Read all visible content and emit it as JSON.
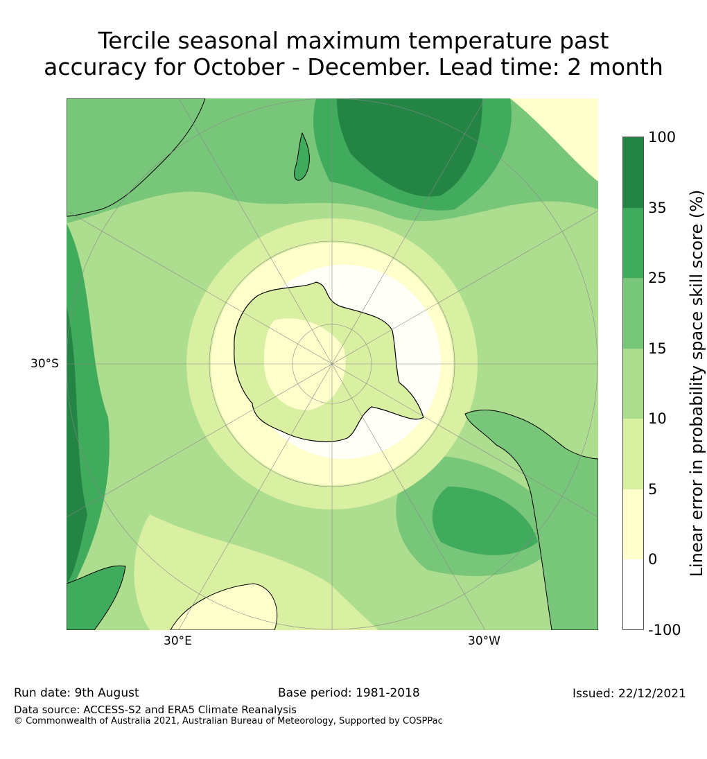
{
  "title_line1": "Tercile seasonal maximum temperature past",
  "title_line2": "accuracy for October - December. Lead time: 2 month",
  "map": {
    "projection": "south-polar-stereographic",
    "lat_label": "30°S",
    "lon_labels": [
      "30°E",
      "30°W"
    ],
    "land_colour": "#ffffff",
    "coast_colour": "#000000"
  },
  "colorbar": {
    "label": "Linear error in probability space skill score (%)",
    "ticks": [
      "100",
      "35",
      "25",
      "15",
      "10",
      "5",
      "0",
      "-100"
    ],
    "bins": [
      {
        "range": "35-100",
        "color": "#238443"
      },
      {
        "range": "25-35",
        "color": "#41ab5d"
      },
      {
        "range": "15-25",
        "color": "#78c679"
      },
      {
        "range": "10-15",
        "color": "#addd8e"
      },
      {
        "range": "5-10",
        "color": "#d9f0a3"
      },
      {
        "range": "0-5",
        "color": "#ffffcc"
      },
      {
        "range": "-100-0",
        "color": "#ffffff"
      }
    ]
  },
  "footer": {
    "run_date": "Run date: 9th August",
    "base_period": "Base period: 1981-2018",
    "issued": "Issued: 22/12/2021",
    "data_source": "Data source: ACCESS-S2 and ERA5 Climate Reanalysis",
    "copyright": "© Commonwealth of Australia 2021, Australian Bureau of Meteorology, Supported by COSPPac"
  }
}
